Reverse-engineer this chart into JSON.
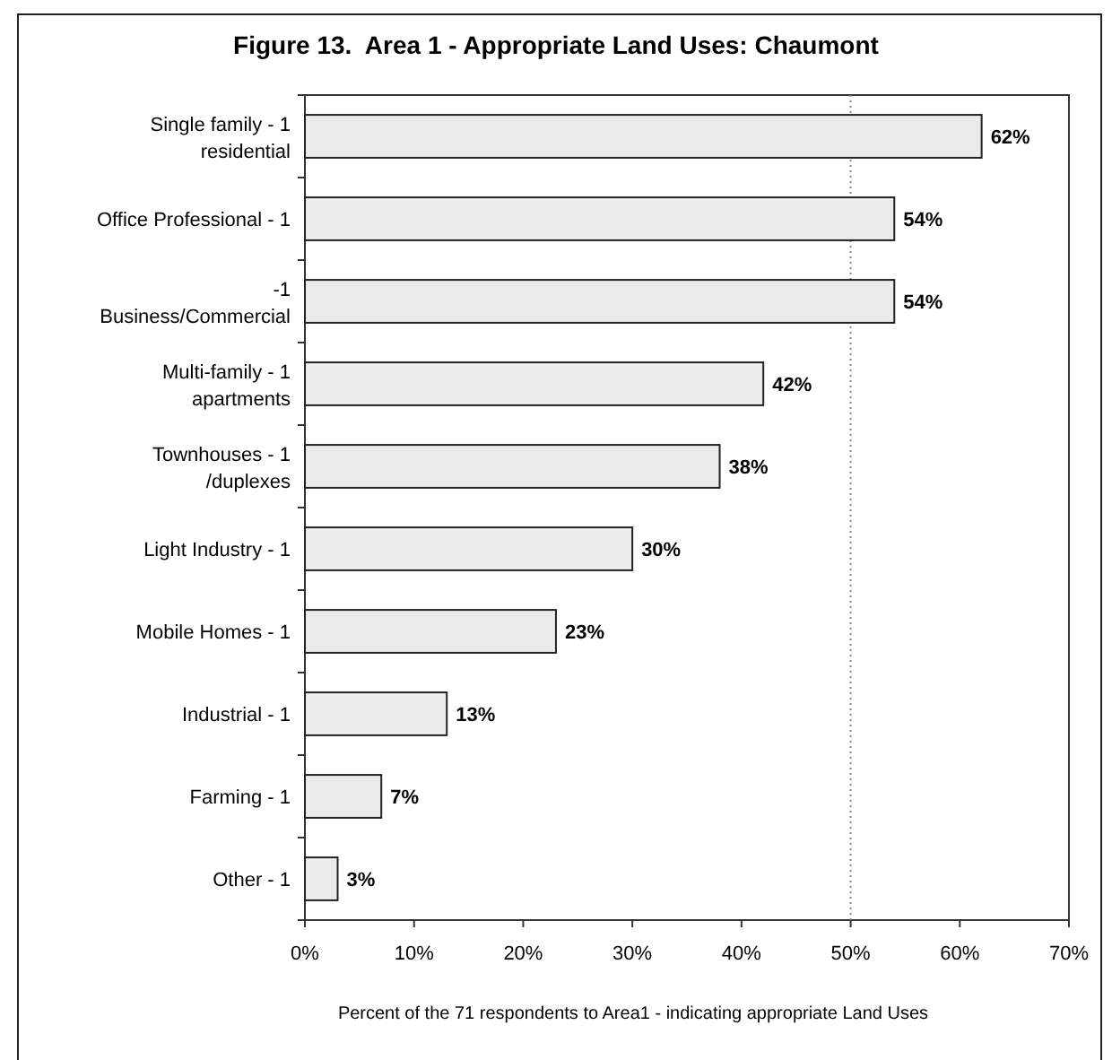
{
  "chart_data": {
    "type": "bar",
    "orientation": "horizontal",
    "title": "Figure 13.  Area 1 - Appropriate Land Uses: Chaumont",
    "xlabel": "Percent of the 71 respondents to Area1 - indicating appropriate Land Uses",
    "categories": [
      "Single family - 1\nresidential",
      "Office Professional - 1",
      "-1\nBusiness/Commercial",
      "Multi-family - 1\napartments",
      "Townhouses - 1\n/duplexes",
      "Light Industry - 1",
      "Mobile Homes - 1",
      "Industrial - 1",
      "Farming - 1",
      "Other - 1"
    ],
    "values": [
      62,
      54,
      54,
      42,
      38,
      30,
      23,
      13,
      7,
      3
    ],
    "value_labels": [
      "62%",
      "54%",
      "54%",
      "42%",
      "38%",
      "30%",
      "23%",
      "13%",
      "7%",
      "3%"
    ],
    "color": "#ebebeb",
    "xlim": [
      0,
      70
    ],
    "xticks": [
      {
        "value": 0,
        "label": "0%"
      },
      {
        "value": 10,
        "label": "10%"
      },
      {
        "value": 20,
        "label": "20%"
      },
      {
        "value": 30,
        "label": "30%"
      },
      {
        "value": 40,
        "label": "40%"
      },
      {
        "value": 50,
        "label": "50%"
      },
      {
        "value": 60,
        "label": "60%"
      },
      {
        "value": 70,
        "label": "70%"
      }
    ],
    "ref_lines": [
      {
        "axis": "x",
        "value": 50,
        "line_style": "dotted",
        "color": "#888888"
      }
    ],
    "grid": false
  }
}
